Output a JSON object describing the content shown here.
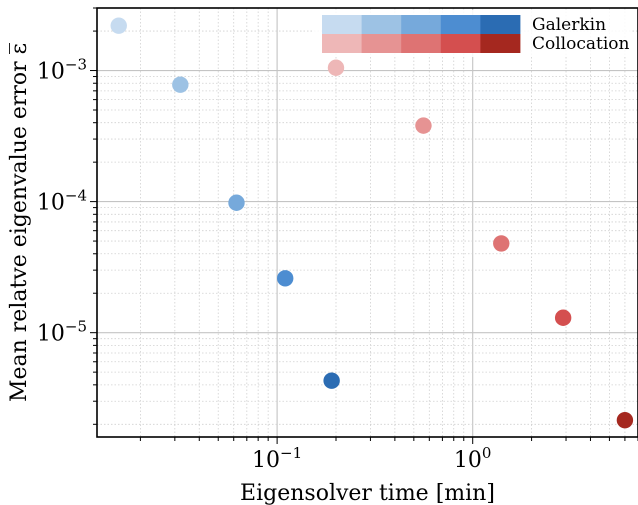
{
  "chart_data": {
    "type": "scatter",
    "xlabel": "Eigensolver time [min]",
    "ylabel": "Mean relatve eigenvalue error ε̅",
    "x_scale": "log",
    "y_scale": "log",
    "xlim": [
      0.012,
      7.0
    ],
    "ylim": [
      1.6e-06,
      0.003
    ],
    "grid": true,
    "x_ticks": [
      {
        "value": 0.1,
        "base": "10",
        "exp": "−1"
      },
      {
        "value": 1.0,
        "base": "10",
        "exp": "0"
      }
    ],
    "y_ticks": [
      {
        "value": 1e-05,
        "base": "10",
        "exp": "−5"
      },
      {
        "value": 0.0001,
        "base": "10",
        "exp": "−4"
      },
      {
        "value": 0.001,
        "base": "10",
        "exp": "−3"
      }
    ],
    "legend_position": "top-right",
    "series": [
      {
        "name": "Galerkin",
        "colors": [
          "#c6dbf0",
          "#9dc2e4",
          "#76a9db",
          "#4d8dd1",
          "#2b6cb3"
        ],
        "points": [
          {
            "x": 0.0155,
            "y": 0.0022
          },
          {
            "x": 0.032,
            "y": 0.00078
          },
          {
            "x": 0.062,
            "y": 9.8e-05
          },
          {
            "x": 0.11,
            "y": 2.6e-05
          },
          {
            "x": 0.19,
            "y": 4.3e-06
          }
        ]
      },
      {
        "name": "Collocation",
        "colors": [
          "#eeb7b7",
          "#e69393",
          "#de7373",
          "#d44f4f",
          "#a5281f"
        ],
        "points": [
          {
            "x": 0.2,
            "y": 0.00105
          },
          {
            "x": 0.56,
            "y": 0.00038
          },
          {
            "x": 1.4,
            "y": 4.8e-05
          },
          {
            "x": 2.9,
            "y": 1.3e-05
          },
          {
            "x": 6.0,
            "y": 2.15e-06
          }
        ]
      }
    ]
  }
}
